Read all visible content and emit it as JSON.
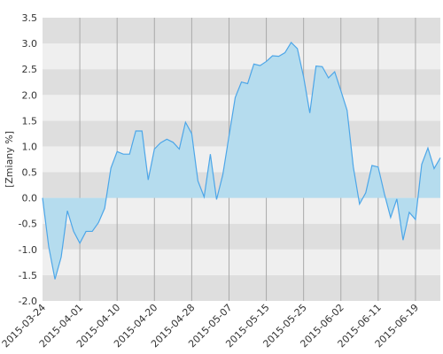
{
  "chart_data": {
    "type": "area",
    "y_label": "[Zmiany %]",
    "categories": [
      "2015-03-24",
      null,
      null,
      null,
      null,
      null,
      "2015-04-01",
      null,
      null,
      null,
      null,
      null,
      "2015-04-10",
      null,
      null,
      null,
      null,
      null,
      "2015-04-20",
      null,
      null,
      null,
      null,
      null,
      "2015-04-28",
      null,
      null,
      null,
      null,
      null,
      "2015-05-07",
      null,
      null,
      null,
      null,
      null,
      "2015-05-15",
      null,
      null,
      null,
      null,
      null,
      "2015-05-25",
      null,
      null,
      null,
      null,
      null,
      "2015-06-02",
      null,
      null,
      null,
      null,
      null,
      "2015-06-11",
      null,
      null,
      null,
      null,
      null,
      "2015-06-19",
      null,
      null,
      null,
      null
    ],
    "series": [
      {
        "name": "Zmiany",
        "color": "#4da6e8",
        "fill": "#b5dcee",
        "values": [
          0.0,
          -0.95,
          -1.58,
          -1.15,
          -0.25,
          -0.65,
          -0.88,
          -0.65,
          -0.65,
          -0.48,
          -0.2,
          0.58,
          0.9,
          0.85,
          0.85,
          1.3,
          1.3,
          0.35,
          0.95,
          1.07,
          1.14,
          1.08,
          0.95,
          1.47,
          1.25,
          0.33,
          0.02,
          0.85,
          -0.03,
          0.45,
          1.2,
          1.95,
          2.25,
          2.22,
          2.6,
          2.57,
          2.65,
          2.76,
          2.75,
          2.82,
          3.02,
          2.9,
          2.35,
          1.65,
          2.56,
          2.55,
          2.33,
          2.45,
          2.08,
          1.7,
          0.6,
          -0.12,
          0.1,
          0.63,
          0.6,
          0.08,
          -0.38,
          -0.02,
          -0.82,
          -0.28,
          -0.42,
          0.65,
          0.97,
          0.57,
          0.78
        ]
      }
    ],
    "ylim": [
      -2.0,
      3.5
    ],
    "yticks": [
      {
        "value": -2.0,
        "label": "-2.0"
      },
      -1.5,
      {
        "value": -1.0,
        "label": "-1.0"
      },
      -0.5,
      {
        "value": 0.0,
        "label": "0.0"
      },
      0.5,
      {
        "value": 1.0,
        "label": "1.0"
      },
      1.5,
      {
        "value": 2.0,
        "label": "2.0"
      },
      2.5,
      {
        "value": 3.0,
        "label": "3.0"
      },
      3.5
    ],
    "band_colors": [
      "#dedede",
      "#efefef"
    ],
    "grid": true
  }
}
